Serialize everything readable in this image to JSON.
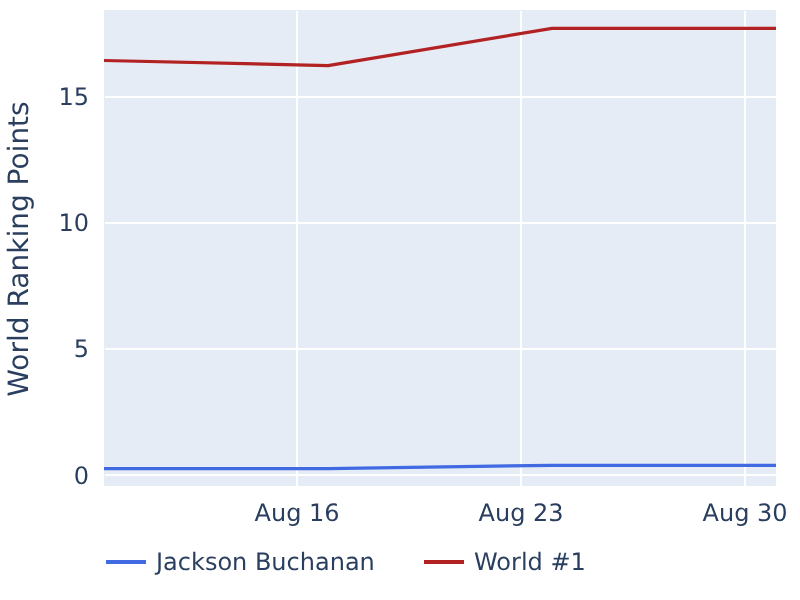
{
  "chart_data": {
    "type": "line",
    "ylabel": "World Ranking Points",
    "x": [
      "--08-10",
      "--08-17",
      "--08-24",
      "--08-31"
    ],
    "series": [
      {
        "name": "Jackson Buchanan",
        "color": "#4169e1",
        "values": [
          0.24,
          0.24,
          0.37,
          0.37
        ]
      },
      {
        "name": "World #1",
        "color": "#b22222",
        "values": [
          16.4,
          16.2,
          17.67,
          17.67
        ]
      }
    ],
    "xlim": [
      "--08-10",
      "--08-31"
    ],
    "xticks": [
      {
        "value": "--08-16",
        "label": "Aug 16"
      },
      {
        "value": "--08-23",
        "label": "Aug 23"
      },
      {
        "value": "--08-30",
        "label": "Aug 30"
      }
    ],
    "ylim": [
      -0.45,
      18.4
    ],
    "yticks": [
      0,
      5,
      10,
      15
    ],
    "grid": true,
    "legend": "bottom",
    "marker": "none",
    "line_style": "solid"
  }
}
